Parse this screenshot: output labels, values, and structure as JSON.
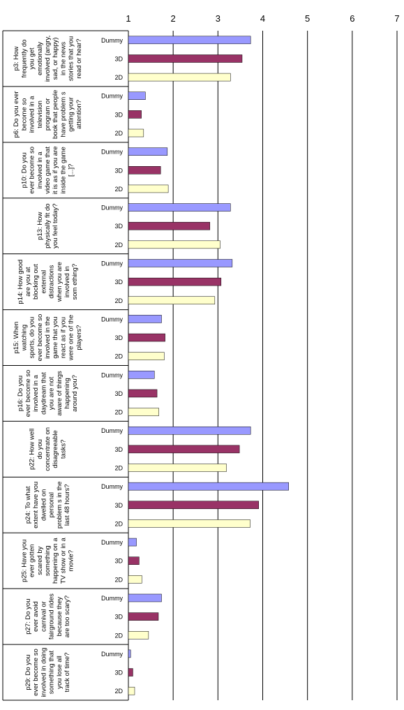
{
  "chart_data": {
    "type": "bar",
    "orientation": "horizontal",
    "xlim": [
      1,
      7
    ],
    "xticks": [
      "1",
      "2",
      "3",
      "4",
      "5",
      "6",
      "7"
    ],
    "grid": "vertical",
    "series_colors": {
      "Dummy": "#9999ff",
      "3D": "#993366",
      "2D": "#ffffcc"
    },
    "series_order": [
      "Dummy",
      "3D",
      "2D"
    ],
    "groups": [
      {
        "label": "p3: How frequently do you get emotionally involved (angry, sad, or happy) in the news stories that you read or hear?",
        "lines": [
          "p3: How",
          "frequently do",
          "you get",
          "emotionally",
          "involved (angry,",
          "sad, or happy)",
          "in the news",
          "stories that you",
          "read or hear?"
        ],
        "values": {
          "Dummy": 3.73,
          "3D": 3.54,
          "2D": 3.28
        }
      },
      {
        "label": "p6: Do you ever become so involved in a television program or book that people have problems getting your attention?",
        "lines": [
          "p6: Do you ever",
          "become so",
          "involved in a",
          "television",
          "program or",
          "book that people",
          "have problem s",
          "getting your",
          "attention?"
        ],
        "values": {
          "Dummy": 1.38,
          "3D": 1.29,
          "2D": 1.34
        }
      },
      {
        "label": "p10: Do you ever become so involved in a video game that it is as if you are inside the game [...]?",
        "lines": [
          "p10: Do you",
          "ever become so",
          "involved in a",
          "video game that",
          "it is as if you are",
          "inside the game",
          "[...]?"
        ],
        "values": {
          "Dummy": 1.87,
          "3D": 1.72,
          "2D": 1.89
        }
      },
      {
        "label": "p13: How physically fit do you feel today?",
        "lines": [
          "p13: How",
          "physically fit do",
          "you feel today?"
        ],
        "values": {
          "Dummy": 3.28,
          "3D": 2.82,
          "2D": 3.05
        }
      },
      {
        "label": "p14: How good are you at blocking out external distractions when you are involved in something?",
        "lines": [
          "p14: How good",
          "are you at",
          "blocking out",
          "external",
          "distractions",
          "when you are",
          "involved in",
          "som ething?"
        ],
        "values": {
          "Dummy": 3.32,
          "3D": 3.07,
          "2D": 2.93
        }
      },
      {
        "label": "p15: When watching sports, do you ever become so involved in the game that you react as if you were one of the players?",
        "lines": [
          "p15: When",
          "watching",
          "sports, do you",
          "ever become so",
          "involved in the",
          "game that you",
          "react as if you",
          "were one of the",
          "players?"
        ],
        "values": {
          "Dummy": 1.74,
          "3D": 1.82,
          "2D": 1.8
        }
      },
      {
        "label": "p16: Do you ever become so involved in a daydream that you are not aware of things happening around you?",
        "lines": [
          "p16: Do you",
          "ever become so",
          "involved in a",
          "daydream that",
          "you are not",
          "aware of things",
          "happening",
          "around you?"
        ],
        "values": {
          "Dummy": 1.58,
          "3D": 1.64,
          "2D": 1.68
        }
      },
      {
        "label": "p22: How well do you concentrate on disagreeable tasks?",
        "lines": [
          "p22: How well",
          "do you",
          "concentrate on",
          "disagreeable",
          "tasks?"
        ],
        "values": {
          "Dummy": 3.73,
          "3D": 3.48,
          "2D": 3.19
        }
      },
      {
        "label": "p24: To what extent have you dwelled on personal problems in the last 48 hours?",
        "lines": [
          "p24: To what",
          "extent have you",
          "dwelled on",
          "personal",
          "problem s in the",
          "last 48 hours?"
        ],
        "values": {
          "Dummy": 4.58,
          "3D": 3.91,
          "2D": 3.72
        }
      },
      {
        "label": "p25: Have you ever gotten scared by something happening on a TV show or in a movie?",
        "lines": [
          "p25: Have you",
          "ever gotten",
          "scared by",
          "something",
          "happening on a",
          "TV show or in a",
          "movie?"
        ],
        "values": {
          "Dummy": 1.18,
          "3D": 1.24,
          "2D": 1.3
        }
      },
      {
        "label": "p27: Do you ever avoid carnival or fairground rides because they are too scary?",
        "lines": [
          "p27: Do you",
          "ever avoid",
          "carnival or",
          "fairground rides",
          "because they",
          "are too scary?"
        ],
        "values": {
          "Dummy": 1.74,
          "3D": 1.67,
          "2D": 1.45
        }
      },
      {
        "label": "p29: Do you ever become so involved in doing something that you lose all track of time?",
        "lines": [
          "p29: Do you",
          "ever become so",
          "involved in doing",
          "something that",
          "you lose all",
          "track of time?"
        ],
        "values": {
          "Dummy": 1.05,
          "3D": 1.1,
          "2D": 1.14
        }
      }
    ]
  }
}
